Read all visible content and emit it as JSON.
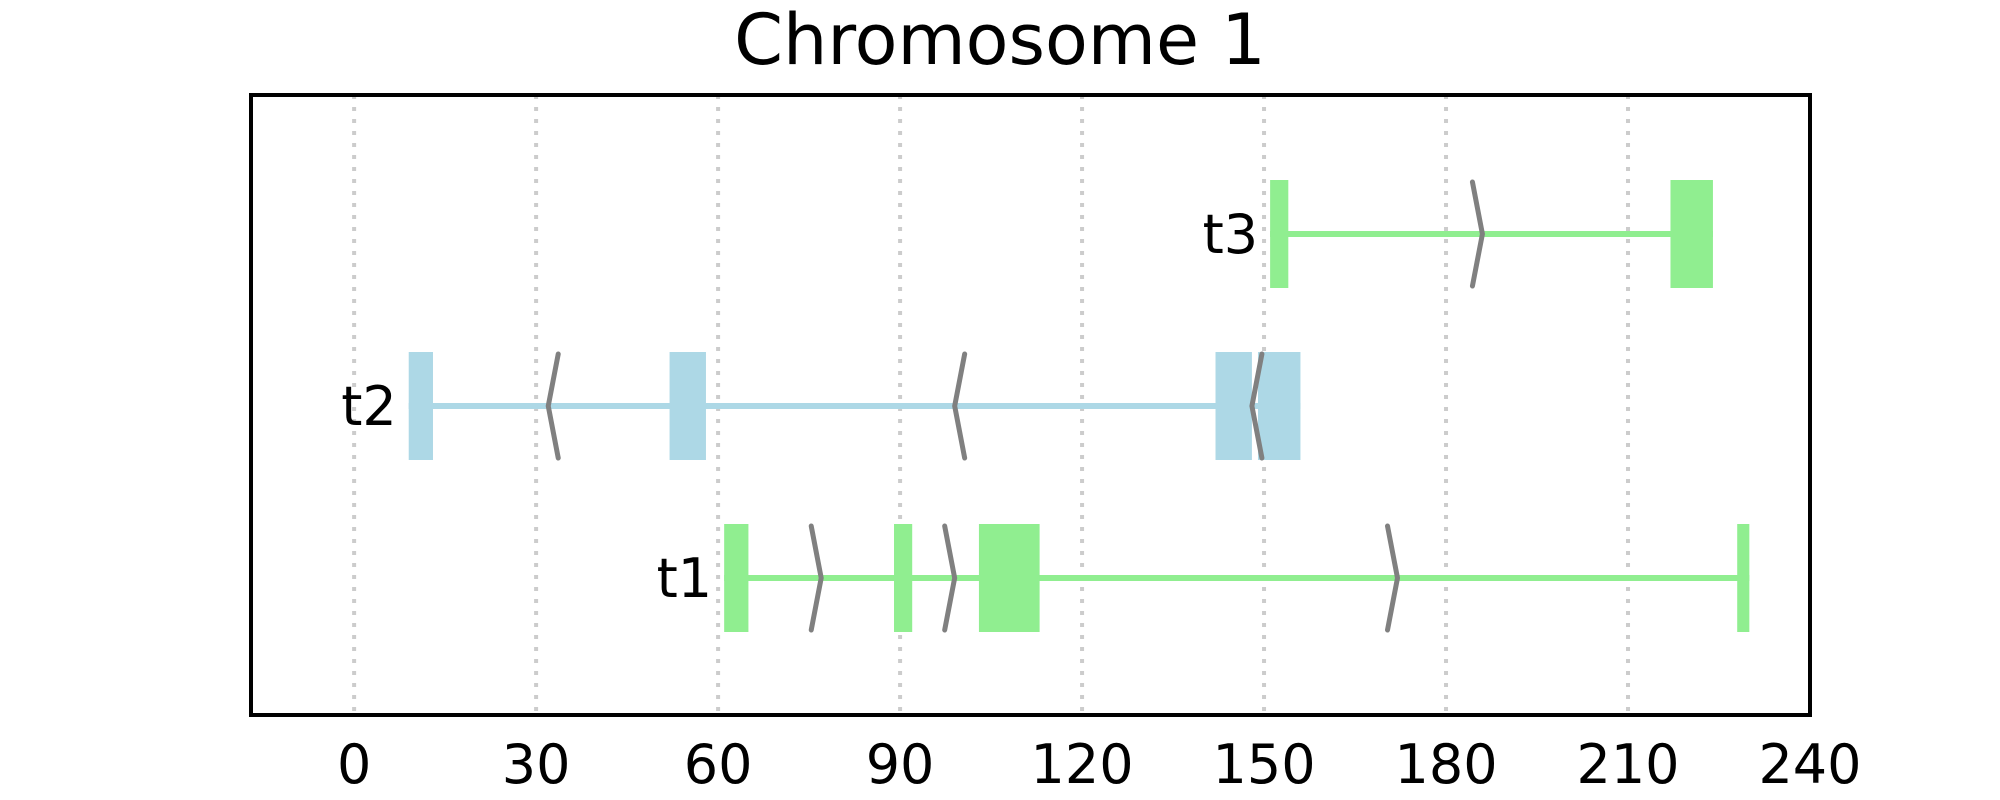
{
  "chart_data": {
    "type": "gene-track",
    "title": "Chromosome 1",
    "xlabel": "",
    "ylabel": "",
    "xlim": [
      -17,
      240
    ],
    "xticks": [
      0,
      30,
      60,
      90,
      120,
      150,
      180,
      210,
      240
    ],
    "xtick_labels": [
      "0",
      "30",
      "60",
      "90",
      "120",
      "150",
      "180",
      "210",
      "240"
    ],
    "grid": "vertical dotted at ticks",
    "colors": {
      "t1": "#90ee90",
      "t2": "#add8e6",
      "t3": "#90ee90",
      "strand_arrow": "#808080",
      "grid": "#cccccc",
      "frame": "#000000"
    },
    "transcripts": [
      {
        "name": "t1",
        "strand": "+",
        "start": 61,
        "end": 230,
        "exons": [
          [
            61,
            65
          ],
          [
            89,
            92
          ],
          [
            103,
            113
          ],
          [
            228,
            230
          ]
        ],
        "arrows": [
          77,
          99,
          172
        ]
      },
      {
        "name": "t2",
        "strand": "-",
        "start": 9,
        "end": 156,
        "exons": [
          [
            9,
            13
          ],
          [
            52,
            58
          ],
          [
            142,
            148
          ],
          [
            149,
            156
          ]
        ],
        "arrows": [
          32,
          99,
          148
        ]
      },
      {
        "name": "t3",
        "strand": "+",
        "start": 151,
        "end": 224,
        "exons": [
          [
            151,
            154
          ],
          [
            217,
            224
          ]
        ],
        "arrows": [
          186
        ]
      }
    ]
  }
}
